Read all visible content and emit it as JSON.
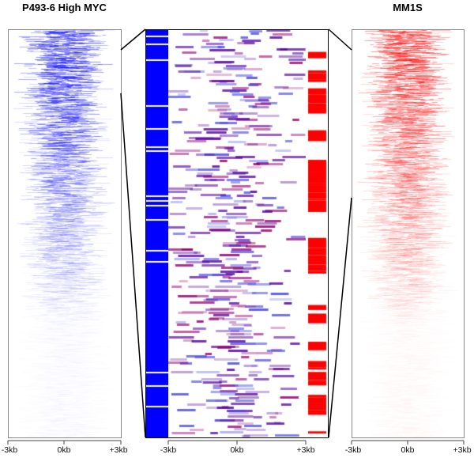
{
  "chart_data": [
    {
      "type": "heatmap",
      "title": "P493-6 High MYC",
      "color": "#0000ff",
      "x_ticks": [
        "-3kb",
        "0kb",
        "+3kb"
      ]
    },
    {
      "type": "heatmap",
      "title": "",
      "colors": [
        "#0000ff",
        "#ff0000"
      ],
      "x_ticks": [
        "-3kb",
        "0kb",
        "+3kb"
      ],
      "side_bars": {
        "left_color": "#0000ff",
        "right_color": "#ff0000"
      }
    },
    {
      "type": "heatmap",
      "title": "MM1S",
      "color": "#ff0000",
      "x_ticks": [
        "-3kb",
        "0kb",
        "+3kb"
      ]
    }
  ]
}
